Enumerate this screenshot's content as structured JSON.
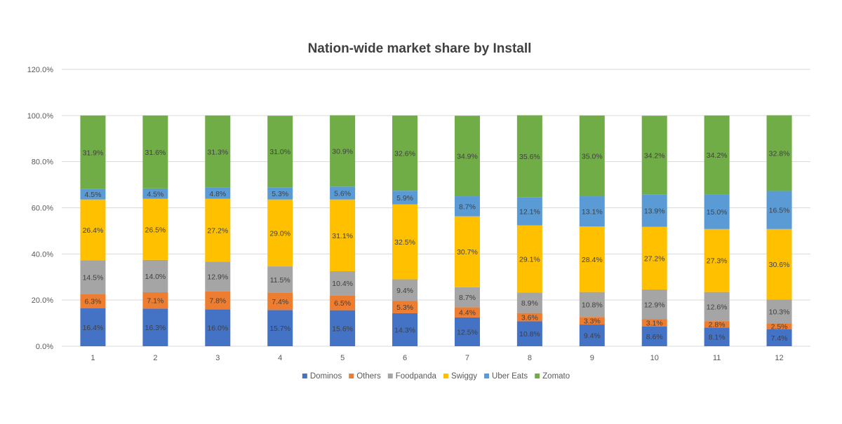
{
  "chart_data": {
    "type": "bar",
    "stacked": true,
    "title": "Nation-wide market share by Install",
    "xlabel": "",
    "ylabel": "",
    "ylim": [
      0,
      120
    ],
    "yticks": [
      "0.0%",
      "20.0%",
      "40.0%",
      "60.0%",
      "80.0%",
      "100.0%",
      "120.0%"
    ],
    "grid": true,
    "legend_position": "bottom",
    "categories": [
      "1",
      "2",
      "3",
      "4",
      "5",
      "6",
      "7",
      "8",
      "9",
      "10",
      "11",
      "12"
    ],
    "series": [
      {
        "name": "Dominos",
        "color": "#4472c4",
        "values": [
          16.4,
          16.3,
          16.0,
          15.7,
          15.6,
          14.3,
          12.5,
          10.8,
          9.4,
          8.6,
          8.1,
          7.4
        ],
        "labels": [
          "16.4%",
          "16.3%",
          "16.0%",
          "15.7%",
          "15.6%",
          "14.3%",
          "12.5%",
          "10.8%",
          "9.4%",
          "8.6%",
          "8.1%",
          "7.4%"
        ]
      },
      {
        "name": "Others",
        "color": "#ed7d31",
        "values": [
          6.3,
          7.1,
          7.8,
          7.4,
          6.5,
          5.3,
          4.4,
          3.6,
          3.3,
          3.1,
          2.8,
          2.5
        ],
        "labels": [
          "6.3%",
          "7.1%",
          "7.8%",
          "7.4%",
          "6.5%",
          "5.3%",
          "4.4%",
          "3.6%",
          "3.3%",
          "3.1%",
          "2.8%",
          "2.5%"
        ]
      },
      {
        "name": "Foodpanda",
        "color": "#a5a5a5",
        "values": [
          14.5,
          14.0,
          12.9,
          11.5,
          10.4,
          9.4,
          8.7,
          8.9,
          10.8,
          12.9,
          12.6,
          10.3
        ],
        "labels": [
          "14.5%",
          "14.0%",
          "12.9%",
          "11.5%",
          "10.4%",
          "9.4%",
          "8.7%",
          "8.9%",
          "10.8%",
          "12.9%",
          "12.6%",
          "10.3%"
        ]
      },
      {
        "name": "Swiggy",
        "color": "#ffc000",
        "values": [
          26.4,
          26.5,
          27.2,
          29.0,
          31.1,
          32.5,
          30.7,
          29.1,
          28.4,
          27.2,
          27.3,
          30.6
        ],
        "labels": [
          "26.4%",
          "26.5%",
          "27.2%",
          "29.0%",
          "31.1%",
          "32.5%",
          "30.7%",
          "29.1%",
          "28.4%",
          "27.2%",
          "27.3%",
          "30.6%"
        ]
      },
      {
        "name": "Uber Eats",
        "color": "#5b9bd5",
        "values": [
          4.5,
          4.5,
          4.8,
          5.3,
          5.6,
          5.9,
          8.7,
          12.1,
          13.1,
          13.9,
          15.0,
          16.5
        ],
        "labels": [
          "4.5%",
          "4.5%",
          "4.8%",
          "5.3%",
          "5.6%",
          "5.9%",
          "8.7%",
          "12.1%",
          "13.1%",
          "13.9%",
          "15.0%",
          "16.5%"
        ]
      },
      {
        "name": "Zomato",
        "color": "#70ad47",
        "values": [
          31.9,
          31.6,
          31.3,
          31.0,
          30.9,
          32.6,
          34.9,
          35.6,
          35.0,
          34.2,
          34.2,
          32.8
        ],
        "labels": [
          "31.9%",
          "31.6%",
          "31.3%",
          "31.0%",
          "30.9%",
          "32.6%",
          "34.9%",
          "35.6%",
          "35.0%",
          "34.2%",
          "34.2%",
          "32.8%"
        ]
      }
    ]
  }
}
